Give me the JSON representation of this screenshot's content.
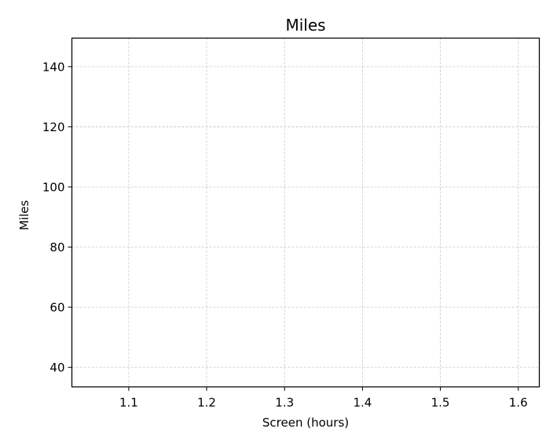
{
  "chart_data": {
    "type": "line",
    "title": "Miles",
    "xlabel": "Screen (hours)",
    "ylabel": "Miles",
    "xlim": [
      1.027,
      1.627
    ],
    "ylim": [
      33.5,
      149.5
    ],
    "x_ticks": [
      1.1,
      1.2,
      1.3,
      1.4,
      1.5,
      1.6
    ],
    "x_tick_labels": [
      "1.1",
      "1.2",
      "1.3",
      "1.4",
      "1.5",
      "1.6"
    ],
    "y_ticks": [
      40,
      60,
      80,
      100,
      120,
      140
    ],
    "y_tick_labels": [
      "40",
      "60",
      "80",
      "100",
      "120",
      "140"
    ],
    "grid": true,
    "series": [],
    "colors": {
      "grid": "#c8c8c8",
      "axes": "#000000",
      "background": "#ffffff"
    }
  }
}
